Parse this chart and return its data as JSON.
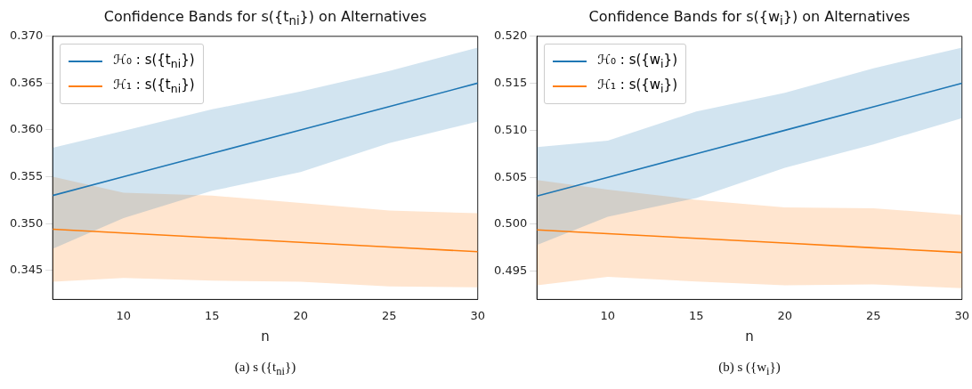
{
  "chart_data": [
    {
      "type": "line",
      "title": "Confidence Bands for s({t$_{ni}$}) on Alternatives",
      "xlabel": "n",
      "annotations": [
        "(a) s ({t$_{ni}$})"
      ],
      "x": [
        6,
        10,
        15,
        20,
        25,
        30
      ],
      "xlim": [
        6,
        30
      ],
      "xticks": [
        10,
        15,
        20,
        25,
        30
      ],
      "ylim": [
        0.3419,
        0.37
      ],
      "yticks": [
        {
          "value": 0.345,
          "label": "0.345"
        },
        {
          "value": 0.35,
          "label": "0.350"
        },
        {
          "value": 0.355,
          "label": "0.355"
        },
        {
          "value": 0.36,
          "label": "0.360"
        },
        {
          "value": 0.365,
          "label": "0.365"
        },
        {
          "value": 0.37,
          "label": "0.370"
        }
      ],
      "grid": false,
      "legend": "top left",
      "line_style": "solid",
      "marker": "none",
      "series": [
        {
          "name": "ℋ₀ : s({t$_{ni}$})",
          "color": "#1f77b4",
          "values": [
            0.353,
            0.355,
            0.3575,
            0.36,
            0.3625,
            0.365
          ],
          "lower": [
            0.3473,
            0.3506,
            0.3535,
            0.3555,
            0.3586,
            0.3609
          ],
          "upper": [
            0.3581,
            0.3599,
            0.3622,
            0.3641,
            0.3663,
            0.3688
          ]
        },
        {
          "name": "ℋ₁ : s({t$_{ni}$})",
          "color": "#ff7f0e",
          "values": [
            0.3494,
            0.349,
            0.3485,
            0.348,
            0.3475,
            0.347
          ],
          "lower": [
            0.3438,
            0.3442,
            0.3439,
            0.3438,
            0.3433,
            0.3432
          ],
          "upper": [
            0.355,
            0.3533,
            0.353,
            0.3522,
            0.3514,
            0.3511
          ]
        }
      ]
    },
    {
      "type": "line",
      "title": "Confidence Bands for s({w$_{i}$}) on Alternatives",
      "xlabel": "n",
      "annotations": [
        "(b) s ({w$_{i}$})"
      ],
      "x": [
        6,
        10,
        15,
        20,
        25,
        30
      ],
      "xlim": [
        6,
        30
      ],
      "xticks": [
        10,
        15,
        20,
        25,
        30
      ],
      "ylim": [
        0.492,
        0.52
      ],
      "yticks": [
        {
          "value": 0.495,
          "label": "0.495"
        },
        {
          "value": 0.5,
          "label": "0.500"
        },
        {
          "value": 0.505,
          "label": "0.505"
        },
        {
          "value": 0.51,
          "label": "0.510"
        },
        {
          "value": 0.515,
          "label": "0.515"
        },
        {
          "value": 0.52,
          "label": "0.520"
        }
      ],
      "grid": false,
      "legend": "top left",
      "line_style": "solid",
      "marker": "none",
      "series": [
        {
          "name": "ℋ₀ : s({w$_{i}$})",
          "color": "#1f77b4",
          "values": [
            0.503,
            0.505,
            0.5075,
            0.51,
            0.5125,
            0.515
          ],
          "lower": [
            0.4978,
            0.5008,
            0.5028,
            0.506,
            0.5085,
            0.5113
          ],
          "upper": [
            0.5082,
            0.5089,
            0.512,
            0.514,
            0.5166,
            0.5188
          ]
        },
        {
          "name": "ℋ₁ : s({w$_{i}$})",
          "color": "#ff7f0e",
          "values": [
            0.4994,
            0.499,
            0.4985,
            0.498,
            0.4975,
            0.497
          ],
          "lower": [
            0.4935,
            0.4944,
            0.4939,
            0.4935,
            0.4936,
            0.4932
          ],
          "upper": [
            0.5047,
            0.5037,
            0.5026,
            0.5018,
            0.5017,
            0.501
          ]
        }
      ]
    }
  ]
}
